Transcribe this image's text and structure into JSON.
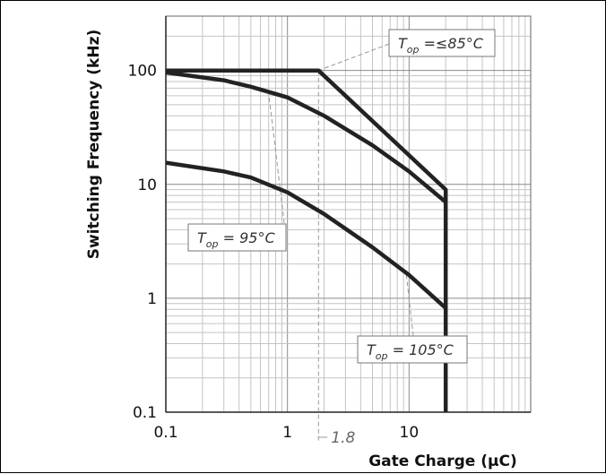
{
  "chart_data": {
    "type": "line",
    "xlabel": "Gate Charge (µC)",
    "ylabel": "Switching Frequency (kHz)",
    "x_scale": "log",
    "y_scale": "log",
    "xlim": [
      0.1,
      100
    ],
    "ylim": [
      0.1,
      300
    ],
    "x_ticks": [
      "0.1",
      "1",
      "10"
    ],
    "y_ticks": [
      "0.1",
      "1",
      "10",
      "100"
    ],
    "grid": true,
    "series": [
      {
        "x": [
          0.1,
          1.8,
          20,
          20
        ],
        "y": [
          100,
          100,
          9,
          0.1
        ]
      },
      {
        "x": [
          0.1,
          0.3,
          0.5,
          1,
          2,
          5,
          10,
          20
        ],
        "y": [
          96,
          82,
          72,
          58,
          40,
          22,
          13,
          7
        ]
      },
      {
        "x": [
          0.1,
          0.3,
          0.5,
          1,
          2,
          5,
          10,
          20
        ],
        "y": [
          15.5,
          13,
          11.5,
          8.5,
          5.5,
          2.8,
          1.6,
          0.82
        ]
      }
    ],
    "marker": {
      "x": 1.8,
      "label": "1.8"
    },
    "annotations": [
      {
        "base": "T",
        "sub": "op",
        "rest": " =≤85°C",
        "points_to": {
          "x": 1.8,
          "y": 100
        }
      },
      {
        "base": "T",
        "sub": "op",
        "rest": " = 95°C",
        "points_to": {
          "x": 0.7,
          "y": 64
        }
      },
      {
        "base": "T",
        "sub": "op",
        "rest": " = 105°C",
        "points_to": {
          "x": 9.5,
          "y": 1.6
        }
      }
    ]
  }
}
